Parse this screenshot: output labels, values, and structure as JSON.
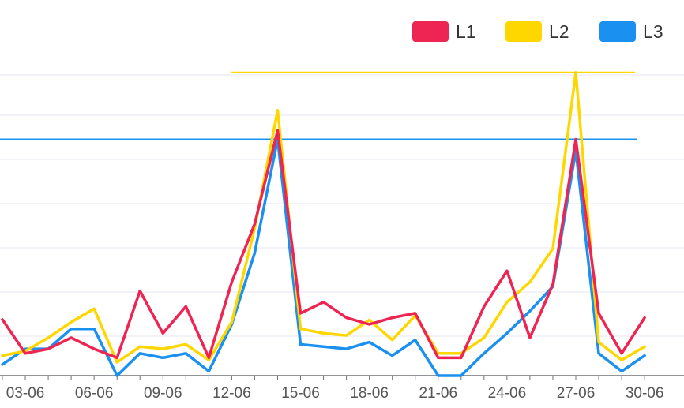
{
  "chart_data": {
    "type": "line",
    "x": [
      "02-06",
      "03-06",
      "04-06",
      "05-06",
      "06-06",
      "07-06",
      "08-06",
      "09-06",
      "10-06",
      "11-06",
      "12-06",
      "13-06",
      "14-06",
      "15-06",
      "16-06",
      "17-06",
      "18-06",
      "19-06",
      "20-06",
      "21-06",
      "22-06",
      "23-06",
      "24-06",
      "25-06",
      "26-06",
      "27-06",
      "28-06",
      "29-06",
      "30-06"
    ],
    "tick_labels": [
      "03-06",
      "06-06",
      "09-06",
      "12-06",
      "15-06",
      "18-06",
      "21-06",
      "24-06",
      "27-06",
      "30-06"
    ],
    "ylim": [
      0,
      68
    ],
    "grid": true,
    "legend_position": "top-right",
    "series": [
      {
        "name": "L1",
        "color": "#EE2452",
        "values": [
          12.6,
          5.0,
          6.0,
          8.5,
          6.0,
          4.0,
          19.0,
          9.5,
          15.5,
          4.0,
          21.0,
          34.0,
          55.0,
          14.0,
          16.5,
          13.0,
          11.5,
          13.0,
          14.0,
          4.0,
          4.0,
          15.5,
          23.5,
          8.5,
          20.5,
          53.0,
          14.0,
          5.0,
          13.0
        ]
      },
      {
        "name": "L2",
        "color": "#FFD700",
        "values": [
          4.5,
          5.5,
          8.5,
          12.0,
          15.0,
          3.0,
          6.5,
          6.0,
          7.0,
          3.5,
          12.0,
          33.0,
          59.5,
          10.5,
          9.5,
          9.0,
          12.5,
          8.0,
          13.5,
          5.0,
          5.0,
          8.5,
          16.5,
          21.0,
          28.5,
          68.0,
          7.5,
          3.5,
          6.5
        ]
      },
      {
        "name": "L3",
        "color": "#1A90F0",
        "values": [
          2.5,
          6.0,
          6.0,
          10.5,
          10.5,
          0.0,
          5.0,
          4.0,
          5.0,
          1.0,
          11.5,
          27.5,
          53.0,
          7.0,
          6.5,
          6.0,
          7.5,
          4.5,
          8.0,
          0.0,
          0.0,
          5.0,
          9.5,
          14.5,
          20.0,
          50.5,
          5.0,
          1.0,
          4.5
        ]
      }
    ],
    "mark_lines": [
      {
        "series": "L2",
        "value": 68.0
      },
      {
        "series": "L3",
        "value": 53.0
      }
    ]
  }
}
